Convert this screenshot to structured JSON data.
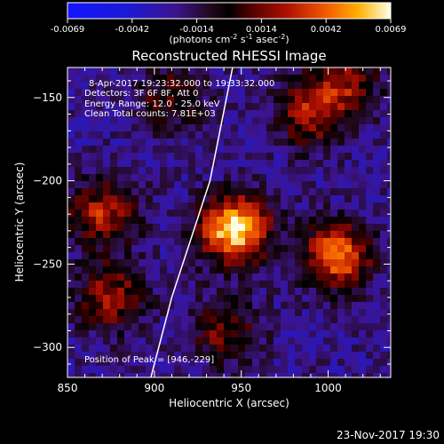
{
  "colorbar": {
    "ticks": [
      "-0.0069",
      "-0.0042",
      "-0.0014",
      "0.0014",
      "0.0042",
      "0.0069"
    ],
    "unit_main": "(photons cm",
    "unit_sup1": "-2",
    "unit_mid1": " s",
    "unit_sup2": "-1",
    "unit_mid2": " asec",
    "unit_sup3": "-2",
    "unit_end": ")"
  },
  "info": {
    "line1": "8-Apr-2017 19:23:32.000 to 19:33:32.000",
    "line2": "Detectors: 3F 6F 8F, Att 0",
    "line3": "Energy Range: 12.0 - 25.0 keV",
    "line4": "Clean    Total counts: 7.81E+03",
    "peak": "Position of Peak = [946,-229]"
  },
  "footer": {
    "date": "23-Nov-2017 19:30"
  },
  "chart_data": {
    "type": "heatmap",
    "title": "Reconstructed RHESSI Image",
    "xlabel": "Heliocentric X (arcsec)",
    "ylabel": "Heliocentric Y (arcsec)",
    "xlim": [
      850,
      1036
    ],
    "ylim": [
      -318,
      -132
    ],
    "xticks": [
      {
        "value": 850,
        "label": "850"
      },
      {
        "value": 900,
        "label": "900"
      },
      {
        "value": 950,
        "label": "950"
      },
      {
        "value": 1000,
        "label": "1000"
      }
    ],
    "yticks": [
      {
        "value": -150,
        "label": "−150"
      },
      {
        "value": -200,
        "label": "−200"
      },
      {
        "value": -250,
        "label": "−250"
      },
      {
        "value": -300,
        "label": "−300"
      }
    ],
    "colorscale": {
      "min": -0.0069,
      "max": 0.0069
    },
    "sources": [
      {
        "x": 946,
        "y": -229,
        "level": 1.0
      },
      {
        "x": 1005,
        "y": -245,
        "level": 0.75
      },
      {
        "x": 870,
        "y": -220,
        "level": 0.55
      },
      {
        "x": 875,
        "y": -270,
        "level": 0.5
      },
      {
        "x": 990,
        "y": -160,
        "level": 0.5
      },
      {
        "x": 1010,
        "y": -140,
        "level": 0.45
      },
      {
        "x": 940,
        "y": -290,
        "level": 0.4
      },
      {
        "x": 910,
        "y": -150,
        "level": 0.35
      }
    ],
    "limb_curve": [
      {
        "x": 945,
        "y": -132
      },
      {
        "x": 932,
        "y": -200
      },
      {
        "x": 910,
        "y": -270
      },
      {
        "x": 898,
        "y": -318
      }
    ]
  }
}
